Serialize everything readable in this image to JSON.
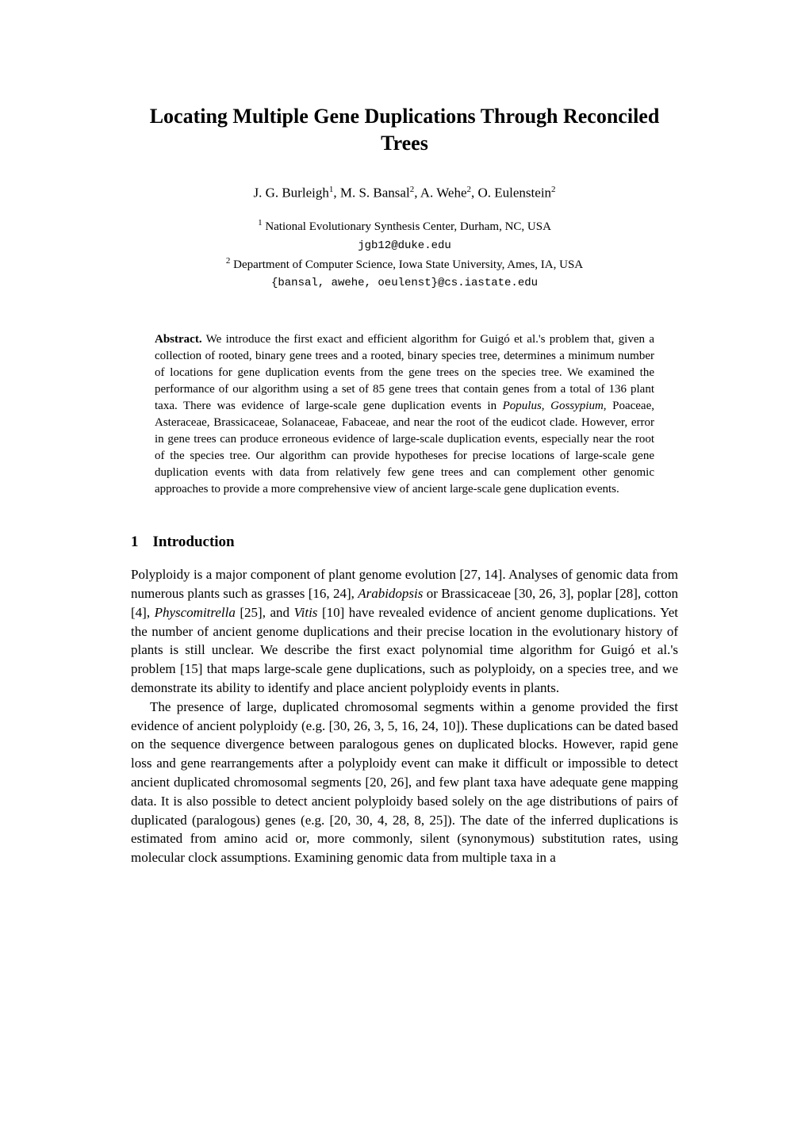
{
  "title": "Locating Multiple Gene Duplications Through Reconciled Trees",
  "authors": {
    "a1": {
      "name": "J. G. Burleigh",
      "sup": "1"
    },
    "a2": {
      "name": "M. S. Bansal",
      "sup": "2"
    },
    "a3": {
      "name": "A. Wehe",
      "sup": "2"
    },
    "a4": {
      "name": "O. Eulenstein",
      "sup": "2"
    }
  },
  "affiliations": {
    "aff1": {
      "sup": "1",
      "text": "National Evolutionary Synthesis Center, Durham, NC, USA",
      "email": "jgb12@duke.edu"
    },
    "aff2": {
      "sup": "2",
      "text": "Department of Computer Science, Iowa State University, Ames, IA, USA",
      "email": "{bansal, awehe, oeulenst}@cs.iastate.edu"
    }
  },
  "abstract": {
    "label": "Abstract.",
    "part1": "We introduce the first exact and efficient algorithm for Guigó et al.'s problem that, given a collection of rooted, binary gene trees and a rooted, binary species tree, determines a minimum number of locations for gene duplication events from the gene trees on the species tree. We examined the performance of our algorithm using a set of 85 gene trees that contain genes from a total of 136 plant taxa. There was evidence of large-scale gene duplication events in ",
    "italic1": "Populus, Gossypium",
    "part2": ", Poaceae, Asteraceae, Brassicaceae, Solanaceae, Fabaceae, and near the root of the eudicot clade. However, error in gene trees can produce erroneous evidence of large-scale duplication events, especially near the root of the species tree. Our algorithm can provide hypotheses for precise locations of large-scale gene duplication events with data from relatively few gene trees and can complement other genomic approaches to provide a more comprehensive view of ancient large-scale gene duplication events."
  },
  "section1": {
    "number": "1",
    "heading": "Introduction"
  },
  "para1": {
    "t1": "Polyploidy is a major component of plant genome evolution [27, 14]. Analyses of genomic data from numerous plants such as grasses [16, 24], ",
    "i1": "Arabidopsis",
    "t2": " or Brassicaceae [30, 26, 3], poplar [28], cotton [4], ",
    "i2": "Physcomitrella",
    "t3": " [25], and ",
    "i3": "Vitis",
    "t4": " [10] have revealed evidence of ancient genome duplications. Yet the number of ancient genome duplications and their precise location in the evolutionary history of plants is still unclear. We describe the first exact polynomial time algorithm for Guigó et al.'s problem [15] that maps large-scale gene duplications, such as polyploidy, on a species tree, and we demonstrate its ability to identify and place ancient polyploidy events in plants."
  },
  "para2": {
    "t1": "The presence of large, duplicated chromosomal segments within a genome provided the first evidence of ancient polyploidy (e.g. [30, 26, 3, 5, 16, 24, 10]). These duplications can be dated based on the sequence divergence between paralogous genes on duplicated blocks. However, rapid gene loss and gene rearrangements after a polyploidy event can make it difficult or impossible to detect ancient duplicated chromosomal segments [20, 26], and few plant taxa have adequate gene mapping data. It is also possible to detect ancient polyploidy based solely on the age distributions of pairs of duplicated (paralogous) genes (e.g. [20, 30, 4, 28, 8, 25]). The date of the inferred duplications is estimated from amino acid or, more commonly, silent (synonymous) substitution rates, using molecular clock assumptions. Examining genomic data from multiple taxa in a"
  }
}
